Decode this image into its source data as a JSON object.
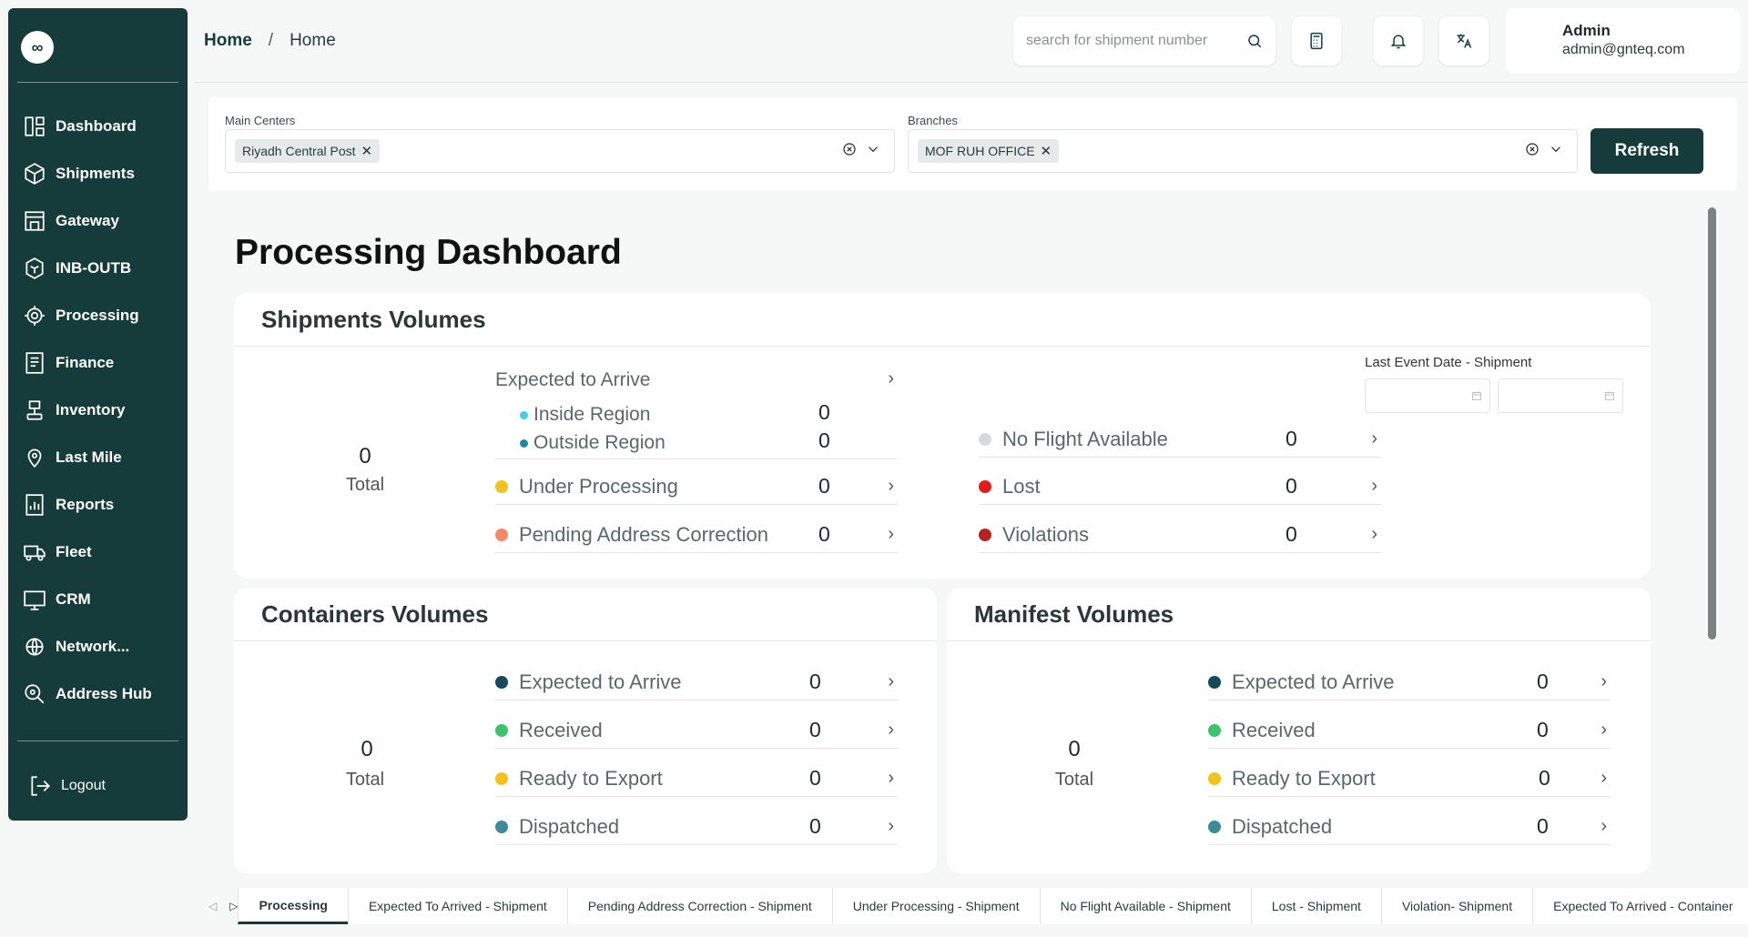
{
  "sidebar": {
    "logo": "∞",
    "items": [
      {
        "label": "Dashboard",
        "icon": "dashboard-icon"
      },
      {
        "label": "Shipments",
        "icon": "box-icon"
      },
      {
        "label": "Gateway",
        "icon": "gateway-icon"
      },
      {
        "label": "INB-OUTB",
        "icon": "cube-icon"
      },
      {
        "label": "Processing",
        "icon": "gear-icon"
      },
      {
        "label": "Finance",
        "icon": "finance-icon"
      },
      {
        "label": "Inventory",
        "icon": "inventory-icon"
      },
      {
        "label": "Last Mile",
        "icon": "location-icon"
      },
      {
        "label": "Reports",
        "icon": "report-icon"
      },
      {
        "label": "Fleet",
        "icon": "truck-icon"
      },
      {
        "label": "CRM",
        "icon": "crm-icon"
      },
      {
        "label": "Network...",
        "icon": "network-icon"
      },
      {
        "label": "Address Hub",
        "icon": "address-icon"
      }
    ],
    "logout": "Logout"
  },
  "header": {
    "breadcrumb": [
      "Home",
      "/",
      "Home"
    ],
    "search_placeholder": "search for shipment number",
    "user_name": "Admin",
    "user_email": "admin@gnteq.com"
  },
  "filters": {
    "main_centers_label": "Main Centers",
    "main_centers_chip": "Riyadh Central Post",
    "branches_label": "Branches",
    "branches_chip": "MOF RUH OFFICE",
    "refresh": "Refresh"
  },
  "page_title": "Processing Dashboard",
  "shipments": {
    "title": "Shipments Volumes",
    "total_value": "0",
    "total_label": "Total",
    "expected_label": "Expected to Arrive",
    "inside_label": "Inside Region",
    "inside_value": "0",
    "outside_label": "Outside Region",
    "outside_value": "0",
    "under_processing_label": "Under Processing",
    "under_processing_value": "0",
    "pending_label": "Pending Address Correction",
    "pending_value": "0",
    "no_flight_label": "No Flight Available",
    "no_flight_value": "0",
    "lost_label": "Lost",
    "lost_value": "0",
    "violations_label": "Violations",
    "violations_value": "0",
    "date_label": "Last Event Date - Shipment"
  },
  "containers": {
    "title": "Containers Volumes",
    "total_value": "0",
    "total_label": "Total",
    "rows": [
      {
        "label": "Expected to Arrive",
        "value": "0",
        "color": "#174a5a"
      },
      {
        "label": "Received",
        "value": "0",
        "color": "#3cc36b"
      },
      {
        "label": "Ready to Export",
        "value": "0",
        "color": "#f2c318"
      },
      {
        "label": "Dispatched",
        "value": "0",
        "color": "#3e8a98"
      }
    ]
  },
  "manifest": {
    "title": "Manifest Volumes",
    "total_value": "0",
    "total_label": "Total",
    "rows": [
      {
        "label": "Expected to Arrive",
        "value": "0",
        "color": "#174a5a"
      },
      {
        "label": "Received",
        "value": "0",
        "color": "#3cc36b"
      },
      {
        "label": "Ready to Export",
        "value": "0",
        "color": "#f2c318"
      },
      {
        "label": "Dispatched",
        "value": "0",
        "color": "#3e8a98"
      }
    ]
  },
  "tabs": [
    "Processing",
    "Expected To Arrived - Shipment",
    "Pending Address Correction - Shipment",
    "Under Processing - Shipment",
    "No Flight Available - Shipment",
    "Lost - Shipment",
    "Violation- Shipment",
    "Expected To Arrived - Container"
  ],
  "colors": {
    "brand": "#163b3b",
    "inside_dot": "#3fd0e8",
    "outside_dot": "#1a8aa0",
    "under_processing": "#f2c318",
    "pending": "#f48a6a",
    "no_flight": "#d5d9d9",
    "lost": "#e21c1c",
    "violations": "#b7231f"
  }
}
